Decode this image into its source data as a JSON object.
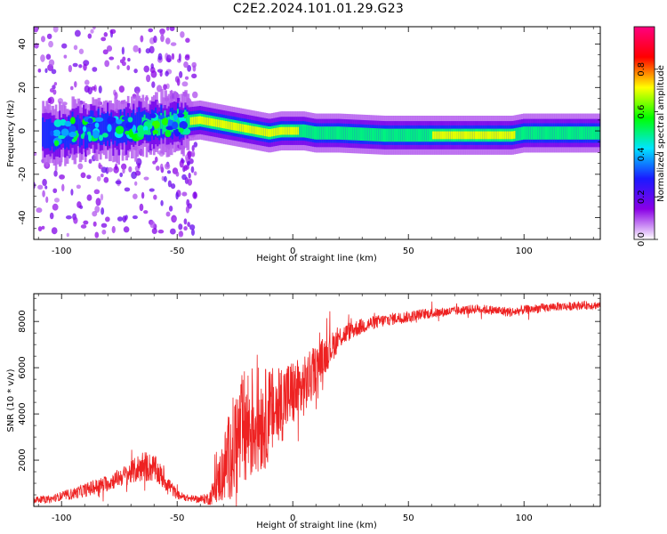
{
  "page": {
    "title": "C2E2.2024.101.01.29.G23"
  },
  "chart_data": [
    {
      "type": "heatmap",
      "title": "C2E2.2024.101.01.29.G23",
      "xlabel": "Height of straight line (km)",
      "ylabel": "Frequency (Hz)",
      "xlim": [
        -112,
        133
      ],
      "ylim": [
        -50,
        48
      ],
      "x_ticks": [
        -100,
        -50,
        0,
        50,
        100
      ],
      "y_ticks": [
        -40,
        -20,
        0,
        20,
        40
      ],
      "colorbar": {
        "label": "Normalized spectral amplitude",
        "range": [
          0,
          1
        ],
        "ticks": [
          "0.0",
          "0.2",
          "0.4",
          "0.6",
          "0.8"
        ],
        "ticks_values": [
          0.0,
          0.2,
          0.4,
          0.6,
          0.8
        ],
        "colormap": [
          "#ffffff",
          "#8a00e6",
          "#1a1aff",
          "#00e5ff",
          "#00ff00",
          "#ffff00",
          "#ff0000",
          "#ff0080"
        ]
      },
      "carrier_frequency_track": {
        "x": [
          -105,
          -95,
          -85,
          -75,
          -65,
          -55,
          -48,
          -40,
          -35,
          -30,
          -25,
          -20,
          -15,
          -10,
          -5,
          0,
          5,
          10,
          20,
          40,
          60,
          80,
          90,
          95,
          100,
          110,
          120,
          133
        ],
        "y": [
          -2,
          0,
          1,
          1,
          2,
          3,
          4,
          5,
          4,
          3,
          2,
          1,
          0,
          -1,
          0,
          0,
          0,
          -1,
          -1,
          -2,
          -2,
          -2,
          -2,
          -2,
          -1,
          -1,
          -1,
          -1
        ],
        "peak_amplitude": [
          0.35,
          0.4,
          0.45,
          0.45,
          0.5,
          0.5,
          0.6,
          0.85,
          0.85,
          0.8,
          0.8,
          0.8,
          0.75,
          0.75,
          0.8,
          0.8,
          0.6,
          0.7,
          0.65,
          0.65,
          0.7,
          0.7,
          0.7,
          0.75,
          0.6,
          0.65,
          0.6,
          0.55
        ]
      }
    },
    {
      "type": "line",
      "xlabel": "Height of straight line (km)",
      "ylabel": "SNR (10 * v/v)",
      "xlim": [
        -112,
        133
      ],
      "ylim": [
        0,
        9200
      ],
      "x_ticks": [
        -100,
        -50,
        0,
        50,
        100
      ],
      "y_ticks": [
        2000,
        4000,
        6000,
        8000
      ],
      "color": "#ee2222",
      "x": [
        -112,
        -105,
        -100,
        -95,
        -90,
        -85,
        -80,
        -75,
        -70,
        -65,
        -60,
        -55,
        -50,
        -45,
        -40,
        -36,
        -33,
        -30,
        -27,
        -25,
        -22,
        -20,
        -18,
        -15,
        -12,
        -10,
        -7,
        -5,
        -3,
        0,
        3,
        5,
        8,
        10,
        13,
        15,
        18,
        20,
        25,
        30,
        35,
        40,
        45,
        50,
        55,
        60,
        65,
        70,
        75,
        80,
        85,
        90,
        95,
        100,
        105,
        110,
        115,
        120,
        125,
        133
      ],
      "y": [
        300,
        300,
        450,
        550,
        700,
        850,
        1000,
        1250,
        1450,
        1750,
        1650,
        1100,
        500,
        350,
        300,
        350,
        900,
        1600,
        2300,
        2700,
        3100,
        3400,
        3600,
        3700,
        3800,
        4000,
        4200,
        4500,
        4700,
        4900,
        5000,
        5200,
        5600,
        6000,
        6400,
        6700,
        7000,
        7300,
        7600,
        7800,
        7950,
        8050,
        8150,
        8200,
        8300,
        8350,
        8400,
        8450,
        8500,
        8550,
        8500,
        8450,
        8400,
        8500,
        8550,
        8600,
        8650,
        8650,
        8700,
        8700
      ],
      "noise_amplitude": [
        150,
        150,
        200,
        250,
        300,
        350,
        350,
        400,
        500,
        700,
        600,
        450,
        200,
        150,
        150,
        300,
        800,
        1500,
        2000,
        2400,
        2600,
        2800,
        2600,
        2400,
        2200,
        2000,
        1900,
        1800,
        1600,
        1500,
        1400,
        1300,
        1200,
        1000,
        900,
        800,
        600,
        500,
        400,
        350,
        300,
        280,
        260,
        250,
        230,
        220,
        210,
        200,
        200,
        200,
        200,
        220,
        220,
        200,
        200,
        190,
        190,
        180,
        180,
        180
      ]
    }
  ]
}
